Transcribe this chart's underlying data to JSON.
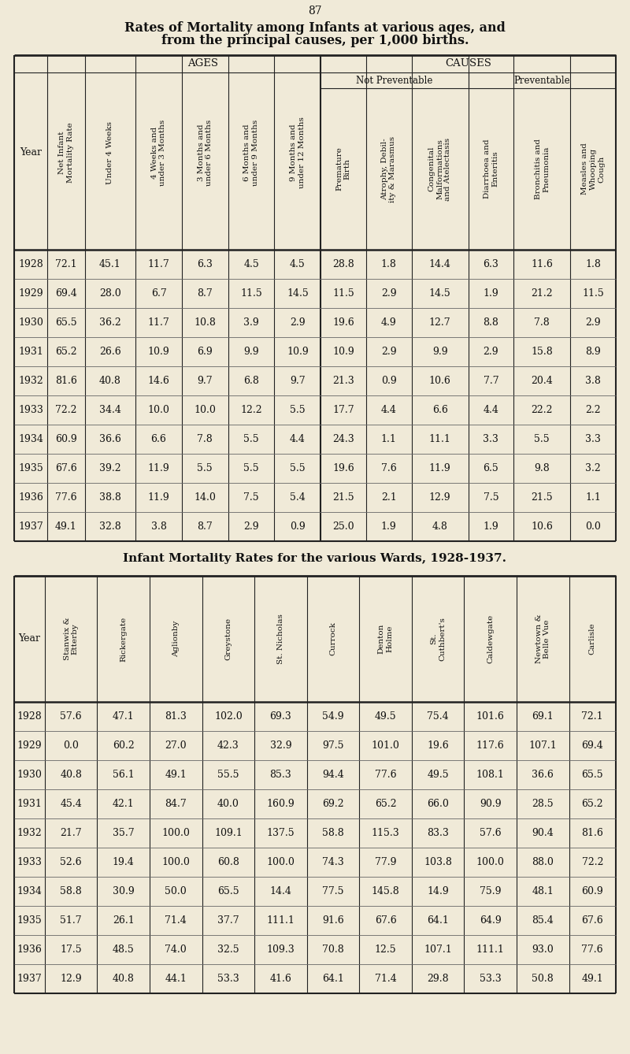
{
  "page_number": "87",
  "title1": "Rates of Mortality among Infants at various ages, and",
  "title2": "from the principal causes, per 1,000 births.",
  "bg_color": "#f0ead8",
  "table1": {
    "years": [
      1928,
      1929,
      1930,
      1931,
      1932,
      1933,
      1934,
      1935,
      1936,
      1937
    ],
    "net_infant": [
      72.1,
      69.4,
      65.5,
      65.2,
      81.6,
      72.2,
      60.9,
      67.6,
      77.6,
      49.1
    ],
    "under4w": [
      45.1,
      28.0,
      36.2,
      26.6,
      40.8,
      34.4,
      36.6,
      39.2,
      38.8,
      32.8
    ],
    "w4_3m": [
      11.7,
      6.7,
      11.7,
      10.9,
      14.6,
      10.0,
      6.6,
      11.9,
      11.9,
      3.8
    ],
    "m3_6m": [
      6.3,
      8.7,
      10.8,
      6.9,
      9.7,
      10.0,
      7.8,
      5.5,
      14.0,
      8.7
    ],
    "m6_9m": [
      4.5,
      11.5,
      3.9,
      9.9,
      6.8,
      12.2,
      5.5,
      5.5,
      7.5,
      2.9
    ],
    "m9_12m": [
      4.5,
      14.5,
      2.9,
      10.9,
      9.7,
      5.5,
      4.4,
      5.5,
      5.4,
      0.9
    ],
    "premature": [
      28.8,
      11.5,
      19.6,
      10.9,
      21.3,
      17.7,
      24.3,
      19.6,
      21.5,
      25.0
    ],
    "atrophy": [
      1.8,
      2.9,
      4.9,
      2.9,
      0.9,
      4.4,
      1.1,
      7.6,
      2.1,
      1.9
    ],
    "congenital": [
      14.4,
      14.5,
      12.7,
      9.9,
      10.6,
      6.6,
      11.1,
      11.9,
      12.9,
      4.8
    ],
    "diarrhoea": [
      6.3,
      1.9,
      8.8,
      2.9,
      7.7,
      4.4,
      3.3,
      6.5,
      7.5,
      1.9
    ],
    "bronchitis": [
      11.6,
      21.2,
      7.8,
      15.8,
      20.4,
      22.2,
      5.5,
      9.8,
      21.5,
      10.6
    ],
    "measles": [
      1.8,
      11.5,
      2.9,
      8.9,
      3.8,
      2.2,
      3.3,
      3.2,
      1.1,
      0.0
    ],
    "col_labels": [
      "Year",
      "Net Infant\nMortality Rate",
      "Under 4 Weeks",
      "4 Weeks and\nunder 3 Months",
      "3 Months and\nunder 6 Months",
      "6 Months and\nunder 9 Months",
      "9 Months and\nunder 12 Months",
      "Premature\nBirth",
      "Atrophy, Debil-\nity & Marasmus",
      "Congenital\nMalformations\nand Atelectasis",
      "Diarrhoea and\nEnteritis",
      "Bronchitis and\nPneumonia",
      "Measles and\nWhooping\nCough"
    ]
  },
  "table2": {
    "title": "Infant Mortality Rates for the various Wards, 1928-1937.",
    "col_headers": [
      "Stanwix &\nEtterby",
      "Rickergate",
      "Aglionby",
      "Greystone",
      "St. Nicholas",
      "Currock",
      "Denton\nHolme",
      "St.\nCuthbert's",
      "Caldewgate",
      "Newtown &\nBelle Vue",
      "Carlisle"
    ],
    "years": [
      1928,
      1929,
      1930,
      1931,
      1932,
      1933,
      1934,
      1935,
      1936,
      1937
    ],
    "stanwix": [
      57.6,
      0.0,
      40.8,
      45.4,
      21.7,
      52.6,
      58.8,
      51.7,
      17.5,
      12.9
    ],
    "rickergate": [
      47.1,
      60.2,
      56.1,
      42.1,
      35.7,
      19.4,
      30.9,
      26.1,
      48.5,
      40.8
    ],
    "aglionby": [
      81.3,
      27.0,
      49.1,
      84.7,
      100.0,
      100.0,
      50.0,
      71.4,
      74.0,
      44.1
    ],
    "greystone": [
      102.0,
      42.3,
      55.5,
      40.0,
      109.1,
      60.8,
      65.5,
      37.7,
      32.5,
      53.3
    ],
    "st_nicholas": [
      69.3,
      32.9,
      85.3,
      160.9,
      137.5,
      100.0,
      14.4,
      111.1,
      109.3,
      41.6
    ],
    "currock": [
      54.9,
      97.5,
      94.4,
      69.2,
      58.8,
      74.3,
      77.5,
      91.6,
      70.8,
      64.1
    ],
    "denton": [
      49.5,
      101.0,
      77.6,
      65.2,
      115.3,
      77.9,
      145.8,
      67.6,
      12.5,
      71.4
    ],
    "st_cuthbert": [
      75.4,
      19.6,
      49.5,
      66.0,
      83.3,
      103.8,
      14.9,
      64.1,
      107.1,
      29.8
    ],
    "caldewgate": [
      101.6,
      117.6,
      108.1,
      90.9,
      57.6,
      100.0,
      75.9,
      64.9,
      111.1,
      53.3
    ],
    "newtown": [
      69.1,
      107.1,
      36.6,
      28.5,
      90.4,
      88.0,
      48.1,
      85.4,
      93.0,
      50.8
    ],
    "carlisle": [
      72.1,
      69.4,
      65.5,
      65.2,
      81.6,
      72.2,
      60.9,
      67.6,
      77.6,
      49.1
    ]
  }
}
